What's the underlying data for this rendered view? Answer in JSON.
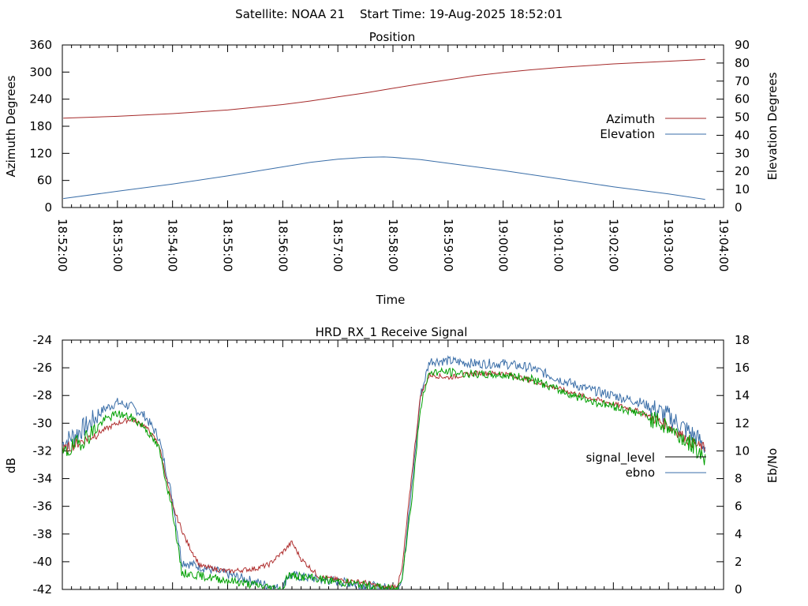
{
  "header": {
    "satellite_label": "Satellite: NOAA 21",
    "start_time_label": "Start Time: 19-Aug-2025 18:52:01"
  },
  "colors": {
    "azimuth": "#a52a2a",
    "elevation": "#3a6ea8",
    "signal_level_trace": "#b03030",
    "signal_level_legend": "#000000",
    "ebno_trace_1": "#3a6ea8",
    "ebno_trace_2": "#00a000",
    "ebno_legend": "#3a6ea8",
    "axis": "#000000",
    "background": "#ffffff"
  },
  "chart_data": [
    {
      "type": "line",
      "title": "Position",
      "xlabel": "Time",
      "ylabel": "Azimuth Degrees",
      "y2label": "Elevation Degrees",
      "xlim": [
        "18:52:00",
        "19:04:00"
      ],
      "xticks": [
        "18:52:00",
        "18:53:00",
        "18:54:00",
        "18:55:00",
        "18:56:00",
        "18:57:00",
        "18:58:00",
        "18:59:00",
        "19:00:00",
        "19:01:00",
        "19:02:00",
        "19:03:00",
        "19:04:00"
      ],
      "ylim": [
        0,
        360
      ],
      "yticks": [
        0,
        60,
        120,
        180,
        240,
        300,
        360
      ],
      "y2lim": [
        0,
        90
      ],
      "y2ticks": [
        0,
        10,
        20,
        30,
        40,
        50,
        60,
        70,
        80,
        90
      ],
      "grid": false,
      "legend_position": "right",
      "series": [
        {
          "name": "Azimuth",
          "axis": "y",
          "x": [
            "18:52:01",
            "18:53:00",
            "18:54:00",
            "18:55:00",
            "18:56:00",
            "18:56:30",
            "18:57:00",
            "18:57:30",
            "18:58:00",
            "18:58:30",
            "18:59:00",
            "18:59:30",
            "19:00:00",
            "19:00:30",
            "19:01:00",
            "19:02:00",
            "19:03:00",
            "19:03:40"
          ],
          "values": [
            198,
            202,
            208,
            216,
            228,
            236,
            245,
            254,
            264,
            274,
            283,
            292,
            299,
            305,
            310,
            318,
            324,
            328
          ]
        },
        {
          "name": "Elevation",
          "axis": "y2",
          "x": [
            "18:52:01",
            "18:53:00",
            "18:54:00",
            "18:55:00",
            "18:56:00",
            "18:56:30",
            "18:57:00",
            "18:57:30",
            "18:57:50",
            "18:58:00",
            "18:58:30",
            "18:59:00",
            "19:00:00",
            "19:01:00",
            "19:02:00",
            "19:03:00",
            "19:03:40"
          ],
          "values": [
            5,
            9,
            13,
            17.5,
            22.5,
            25,
            26.8,
            27.8,
            28,
            27.8,
            26.5,
            24.5,
            20.5,
            16,
            11.5,
            7.5,
            4.5
          ]
        }
      ]
    },
    {
      "type": "line",
      "title": "HRD_RX_1 Receive Signal",
      "ylabel": "dB",
      "y2label": "Eb/No",
      "xlim": [
        "18:52:00",
        "19:04:00"
      ],
      "ylim": [
        -42,
        -24
      ],
      "yticks": [
        -42,
        -40,
        -38,
        -36,
        -34,
        -32,
        -30,
        -28,
        -26,
        -24
      ],
      "y2lim": [
        0,
        18
      ],
      "y2ticks": [
        0,
        2,
        4,
        6,
        8,
        10,
        12,
        14,
        16,
        18
      ],
      "grid": false,
      "legend_position": "right",
      "series": [
        {
          "name": "signal_level",
          "axis": "y",
          "x": [
            "18:52:00",
            "18:52:30",
            "18:52:45",
            "18:53:00",
            "18:53:15",
            "18:53:30",
            "18:53:45",
            "18:54:00",
            "18:54:15",
            "18:54:30",
            "18:55:00",
            "18:55:30",
            "18:55:45",
            "18:56:00",
            "18:56:10",
            "18:56:20",
            "18:56:40",
            "18:57:00",
            "18:57:30",
            "18:57:50",
            "18:58:05",
            "18:58:10",
            "18:58:20",
            "18:58:30",
            "18:58:40",
            "18:59:00",
            "18:59:30",
            "19:00:00",
            "19:00:30",
            "19:01:00",
            "19:01:30",
            "19:02:00",
            "19:02:30",
            "19:03:00",
            "19:03:30",
            "19:03:40"
          ],
          "values": [
            -32,
            -31,
            -30.5,
            -30,
            -29.7,
            -30.2,
            -31.5,
            -36,
            -38.5,
            -40.3,
            -40.7,
            -40.5,
            -40.2,
            -39.3,
            -38.6,
            -39.8,
            -41.1,
            -41.3,
            -41.5,
            -41.9,
            -41.7,
            -40.5,
            -34,
            -28,
            -26.5,
            -26.7,
            -26.4,
            -26.4,
            -26.9,
            -27.5,
            -28.1,
            -28.6,
            -29.2,
            -30.2,
            -31.6,
            -31.8
          ]
        },
        {
          "name": "ebno",
          "axis": "y2",
          "x": [
            "18:52:00",
            "18:52:30",
            "18:52:45",
            "18:53:00",
            "18:53:15",
            "18:53:30",
            "18:53:45",
            "18:54:00",
            "18:54:10",
            "18:56:00",
            "18:56:05",
            "18:56:10",
            "18:58:05",
            "18:58:10",
            "18:58:20",
            "18:58:30",
            "18:58:40",
            "18:59:00",
            "18:59:30",
            "19:00:00",
            "19:00:30",
            "19:01:00",
            "19:01:30",
            "19:02:00",
            "19:02:30",
            "19:03:00",
            "19:03:30",
            "19:03:40"
          ],
          "values": [
            10.5,
            12,
            13,
            13.5,
            13.2,
            12.5,
            11,
            6.5,
            2,
            0,
            1,
            1,
            0,
            1,
            7,
            14,
            16.5,
            16.5,
            16.3,
            16.3,
            16,
            15.2,
            14.5,
            14,
            13.5,
            12.5,
            11,
            10.3
          ]
        }
      ]
    }
  ]
}
